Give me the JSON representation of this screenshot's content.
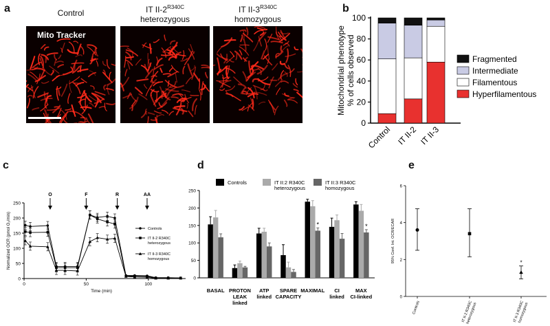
{
  "panel_a": {
    "letter": "a",
    "images": [
      {
        "title": "Control",
        "title_line2": "",
        "overlay": "Mito Tracker"
      },
      {
        "title": "IT II-2",
        "title_sup": "R340C",
        "title_line2": "heterozygous",
        "overlay": ""
      },
      {
        "title": "IT II-3",
        "title_sup": "R340C",
        "title_line2": "homozygous",
        "overlay": ""
      }
    ]
  },
  "chart_data": [
    {
      "panel": "b",
      "type": "bar",
      "stacked": true,
      "ylabel_line1": "Mitochondrial phenotype",
      "ylabel_line2": "% of cells observed",
      "ylim": [
        0,
        100
      ],
      "yticks": [
        "0",
        "20",
        "40",
        "60",
        "80",
        "100"
      ],
      "categories": [
        "Control",
        "IT II-2",
        "IT II-3"
      ],
      "series": [
        {
          "name": "Hyperfilamentous",
          "values": [
            9,
            23,
            58
          ],
          "color": "#e8312f"
        },
        {
          "name": "Filamentous",
          "values": [
            52,
            39,
            34
          ],
          "color": "#ffffff"
        },
        {
          "name": "Intermediate",
          "values": [
            34,
            31,
            6
          ],
          "color": "#c9cbe4"
        },
        {
          "name": "Fragmented",
          "values": [
            5,
            7,
            2
          ],
          "color": "#111111"
        }
      ],
      "legend_order": [
        "Fragmented",
        "Intermediate",
        "Filamentous",
        "Hyperfilamentous"
      ],
      "legend_position": "right"
    },
    {
      "panel": "c",
      "type": "line",
      "xlabel": "Time (min)",
      "ylabel": "Normalized OCR (pmol O₂/min)",
      "xlim": [
        0,
        130
      ],
      "ylim": [
        0,
        250
      ],
      "xticks": [
        "0",
        "50",
        "100"
      ],
      "yticks": [
        "0",
        "50",
        "100",
        "150",
        "200",
        "250"
      ],
      "x": [
        1,
        5,
        19,
        26,
        33,
        43,
        53,
        59,
        67,
        73,
        82,
        89,
        99,
        106,
        116,
        126
      ],
      "series": [
        {
          "name": "Controls",
          "marker": "circle",
          "values": [
            176,
            172,
            175,
            40,
            40,
            40,
            210,
            202,
            206,
            200,
            10,
            10,
            9,
            3,
            3,
            2
          ]
        },
        {
          "name": "IT II-2 R340C heterozygous",
          "marker": "square",
          "values": [
            155,
            152,
            153,
            36,
            36,
            36,
            210,
            197,
            187,
            180,
            8,
            8,
            7,
            2,
            2,
            2
          ]
        },
        {
          "name": "IT II-3 R340C homozygous",
          "marker": "triangle",
          "values": [
            125,
            107,
            105,
            27,
            27,
            25,
            122,
            135,
            130,
            133,
            7,
            5,
            4,
            1,
            1,
            1
          ]
        }
      ],
      "injections": [
        {
          "label": "O",
          "x": 21
        },
        {
          "label": "F",
          "x": 50
        },
        {
          "label": "R",
          "x": 75
        },
        {
          "label": "AA",
          "x": 99
        }
      ],
      "legend_position": "right"
    },
    {
      "panel": "d",
      "type": "bar",
      "ylim": [
        0,
        250
      ],
      "yticks": [
        "0",
        "50",
        "100",
        "150",
        "200",
        "250"
      ],
      "categories": [
        {
          "line1": "BASAL",
          "line2": "",
          "line3": ""
        },
        {
          "line1": "PROTON",
          "line2": "LEAK",
          "line3": "linked"
        },
        {
          "line1": "ATP",
          "line2": "linked",
          "line3": ""
        },
        {
          "line1": "SPARE",
          "line2": "CAPACITY",
          "line3": ""
        },
        {
          "line1": "MAXIMAL",
          "line2": "",
          "line3": ""
        },
        {
          "line1": "CI",
          "line2": "linked",
          "line3": ""
        },
        {
          "line1": "MAX",
          "line2": "CI-linked",
          "line3": ""
        }
      ],
      "series": [
        {
          "name": "Controls",
          "name_line2": "",
          "color": "#000000",
          "values": [
            153,
            28,
            127,
            65,
            218,
            146,
            210
          ],
          "errors": [
            22,
            9,
            15,
            30,
            7,
            25,
            8
          ]
        },
        {
          "name": "IT II:2 R340C",
          "name_line2": "heterozygous",
          "color": "#aaaaaa",
          "values": [
            173,
            42,
            132,
            30,
            205,
            165,
            192
          ],
          "errors": [
            20,
            6,
            10,
            15,
            16,
            15,
            18
          ]
        },
        {
          "name": "IT II:3 R340C",
          "name_line2": "homozygous",
          "color": "#666666",
          "values": [
            116,
            30,
            90,
            17,
            135,
            112,
            130
          ],
          "errors": [
            10,
            3,
            10,
            7,
            8,
            15,
            8
          ]
        }
      ],
      "significance": [
        {
          "category": 4,
          "series": 2,
          "label": "*"
        },
        {
          "category": 6,
          "series": 2,
          "label": "*"
        }
      ],
      "legend_position": "top"
    },
    {
      "panel": "e",
      "type": "scatter",
      "ylabel": "95% Conf. Int. OCR/ECAR",
      "ylim": [
        0,
        6
      ],
      "yticks": [
        "0",
        "2",
        "4",
        "6"
      ],
      "categories": [
        {
          "line1": "Controls",
          "line2": ""
        },
        {
          "line1": "IT II-2 R340C",
          "line2": "heterozygous"
        },
        {
          "line1": "IT II-3 R340C",
          "line2": "homozygous"
        }
      ],
      "series": [
        {
          "markers": [
            "circle",
            "square",
            "triangle"
          ],
          "values": [
            3.6,
            3.4,
            1.3
          ],
          "lower": [
            2.5,
            2.15,
            0.95
          ],
          "upper": [
            4.75,
            4.75,
            1.65
          ]
        }
      ],
      "significance": [
        {
          "category": 2,
          "label": "*"
        }
      ]
    }
  ]
}
